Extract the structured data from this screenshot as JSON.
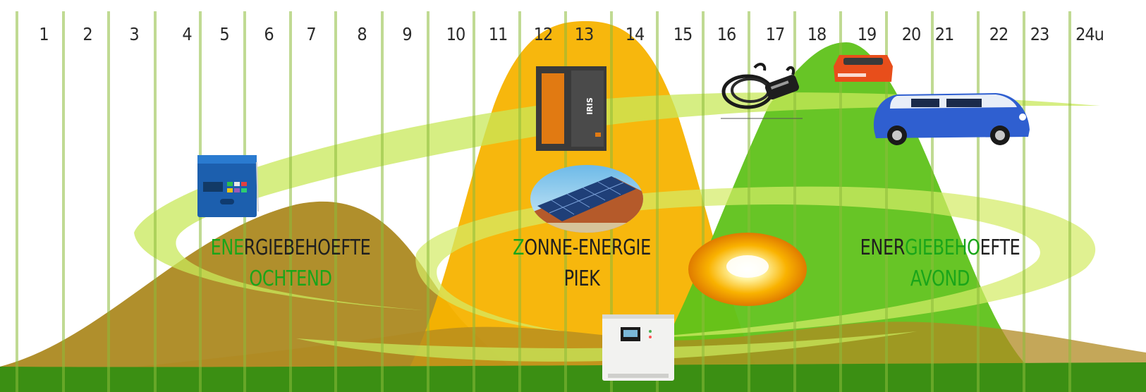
{
  "hours": [
    "1",
    "2",
    "3",
    "4",
    "5",
    "6",
    "7",
    "8",
    "9",
    "10",
    "11",
    "12",
    "13",
    "14",
    "15",
    "16",
    "17",
    "18",
    "19",
    "20",
    "21",
    "22",
    "23",
    "24u"
  ],
  "labels": {
    "morning": {
      "line1_a": "ENE",
      "line1_b": "RGIEBEHOEFTE",
      "line2": "OCHTEND"
    },
    "solar": {
      "line1_a": "Z",
      "line1_b": "ONNE-ENERGIE",
      "line2": "PIEK"
    },
    "evening": {
      "line1_a": "ENER",
      "line1_b": "GIEBEHO",
      "line1_c": "EFTE",
      "line2": "AVOND"
    }
  },
  "device_texts": {
    "battery_brand": "IRIS"
  },
  "colors": {
    "grass_dark": "#1f5f0b",
    "olive": "#a9851a",
    "olive_light": "#c49b2b",
    "solar_orange": "#f7b300",
    "bright_green": "#5fc21a",
    "lime": "#c8e85a",
    "text_green": "#1aa51a",
    "stripe": "#8dbb3a"
  },
  "icons": {
    "inverter_morning": "inverter-icon",
    "battery": "home-battery-icon",
    "solar_panel": "solar-panel-roof-icon",
    "ev_cable": "ev-charging-cable-icon",
    "charger": "battery-charger-icon",
    "van": "electric-van-icon",
    "sun": "sun-icon",
    "hybrid_inverter": "hybrid-inverter-icon"
  }
}
